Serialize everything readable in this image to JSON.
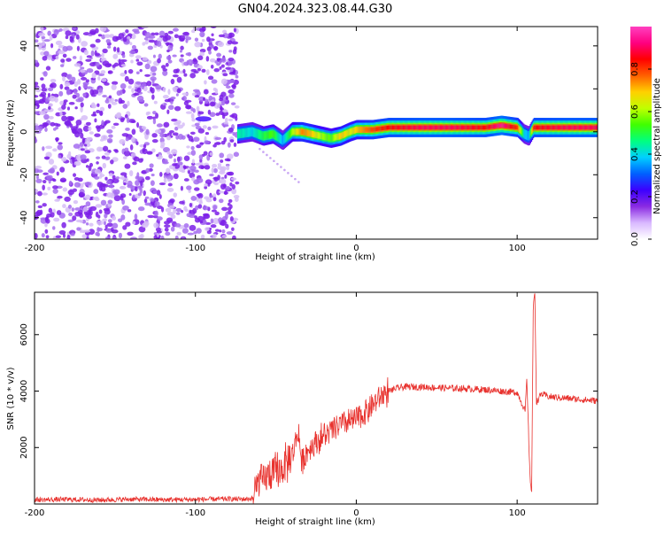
{
  "title": "GN04.2024.323.08.44.G30",
  "colors": {
    "spectrogram_low": "#7b1fe8",
    "spectrogram_light": "#c9a6f4",
    "signal_line": "#e8312d",
    "frame": "#000000"
  },
  "chart_data": [
    {
      "type": "heatmap",
      "xlabel": "Height of straight line (km)",
      "ylabel": "Frequency (Hz)",
      "xlim": [
        -200,
        150
      ],
      "ylim": [
        -50,
        49
      ],
      "xticks": [
        -200,
        -100,
        0,
        100
      ],
      "yticks": [
        -40,
        -20,
        0,
        20,
        40
      ],
      "colorbar": {
        "label": "Normalized spectral amplitude",
        "range": [
          0,
          1
        ],
        "ticks": [
          0.0,
          0.2,
          0.4,
          0.6,
          0.8
        ],
        "tick_labels": [
          "0.0",
          "0.2",
          "0.4",
          "0.6",
          "0.8"
        ],
        "colormap": [
          "#ffffff",
          "#d9b8ff",
          "#8a2be2",
          "#3c00ff",
          "#0060ff",
          "#00d0ff",
          "#00ff80",
          "#40ff00",
          "#c0ff00",
          "#ffd000",
          "#ff6000",
          "#ff0000",
          "#ff0080",
          "#ff40c0"
        ]
      },
      "noise_region": {
        "x_range": [
          -200,
          -74
        ],
        "amplitude": 0.15
      },
      "ridge": {
        "x": [
          -74,
          -65,
          -58,
          -52,
          -46,
          -40,
          -34,
          -28,
          -22,
          -16,
          -10,
          -4,
          0,
          10,
          20,
          40,
          60,
          80,
          90,
          100,
          104,
          107,
          110,
          130,
          150
        ],
        "y": [
          -1,
          0,
          -2,
          -1,
          -4,
          0,
          0,
          -1,
          -2,
          -3,
          -2,
          0,
          1,
          1,
          2,
          2,
          2,
          2,
          3,
          2,
          -1,
          -2,
          2,
          2,
          2
        ],
        "amplitude": [
          0.45,
          0.4,
          0.5,
          0.55,
          0.35,
          0.6,
          0.75,
          0.7,
          0.6,
          0.55,
          0.7,
          0.65,
          0.7,
          0.8,
          0.85,
          0.9,
          0.9,
          0.85,
          0.95,
          0.8,
          0.4,
          0.35,
          0.85,
          0.9,
          0.9
        ]
      }
    },
    {
      "type": "line",
      "xlabel": "Height of straight line (km)",
      "ylabel": "SNR (10 * v/v)",
      "xlim": [
        -200,
        150
      ],
      "ylim": [
        0,
        7500
      ],
      "xticks": [
        -200,
        -100,
        0,
        100
      ],
      "yticks": [
        2000,
        4000,
        6000
      ],
      "series": [
        {
          "x": [
            -200,
            -180,
            -160,
            -140,
            -120,
            -100,
            -80,
            -70,
            -64,
            -62,
            -60,
            -58,
            -55,
            -50,
            -45,
            -40,
            -36,
            -34,
            -32,
            -30,
            -25,
            -20,
            -15,
            -10,
            -5,
            0,
            5,
            10,
            15,
            20,
            25,
            30,
            40,
            50,
            60,
            70,
            80,
            90,
            100,
            105,
            106,
            108,
            109,
            110,
            111,
            112,
            115,
            120,
            130,
            140,
            150
          ],
          "y": [
            150,
            160,
            140,
            170,
            150,
            160,
            180,
            170,
            200,
            600,
            900,
            800,
            1000,
            1100,
            1300,
            1700,
            2600,
            1500,
            1700,
            1900,
            2200,
            2400,
            2600,
            2800,
            2900,
            3000,
            3200,
            3500,
            3800,
            4000,
            4100,
            4150,
            4150,
            4120,
            4100,
            4080,
            4050,
            4000,
            3950,
            3300,
            4400,
            900,
            500,
            6900,
            7500,
            3600,
            3900,
            3800,
            3750,
            3700,
            3650
          ]
        }
      ]
    }
  ]
}
